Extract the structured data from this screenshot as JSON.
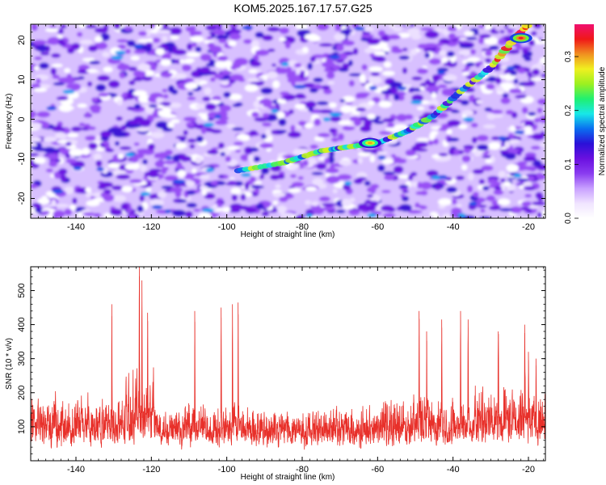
{
  "title": "KOM5.2025.167.17.57.G25",
  "colors": {
    "snr_line": "#e8302a",
    "axis": "#000000",
    "colormap": [
      "#ffffff",
      "#f0e4ff",
      "#c8a0ff",
      "#8a3cf0",
      "#6a10e0",
      "#2a10d8",
      "#0a6ff0",
      "#18e8e8",
      "#20f070",
      "#9cf020",
      "#f0f020",
      "#f09020",
      "#f01818",
      "#f01070"
    ]
  },
  "chart_data": [
    {
      "type": "heatmap",
      "xlabel": "Height of straight line (km)",
      "ylabel": "Frequency (Hz)",
      "xlim": [
        -152,
        -15.5
      ],
      "ylim": [
        -25,
        24
      ],
      "xticks": [
        -140,
        -120,
        -100,
        -80,
        -60,
        -40,
        -20
      ],
      "yticks": [
        -20,
        -10,
        0,
        10,
        20
      ],
      "colorbar": {
        "label": "Normalized spectral amplitude",
        "range": [
          0,
          0.36
        ],
        "ticks": [
          "0.0",
          "0.1",
          "0.2",
          "0.3"
        ]
      },
      "features": [
        {
          "name": "main streak",
          "points": [
            [
              -97,
              -13
            ],
            [
              -85,
              -11
            ],
            [
              -75,
              -8
            ],
            [
              -68,
              -7
            ],
            [
              -60,
              -6
            ],
            [
              -52,
              -3
            ],
            [
              -45,
              1
            ],
            [
              -38,
              7
            ],
            [
              -30,
              13
            ],
            [
              -24,
              20
            ],
            [
              -20,
              24
            ]
          ]
        },
        {
          "name": "peak",
          "x": -22,
          "y": 20.5,
          "value": 0.34
        },
        {
          "name": "secondary peak",
          "x": -62,
          "y": -6,
          "value": 0.3
        }
      ]
    },
    {
      "type": "line",
      "xlabel": "Height of straight line (km)",
      "ylabel": "SNR (10 * v/v)",
      "xlim": [
        -152,
        -15.5
      ],
      "ylim": [
        0,
        570
      ],
      "xticks": [
        -140,
        -120,
        -100,
        -80,
        -60,
        -40,
        -20
      ],
      "yticks": [
        100,
        200,
        300,
        400,
        500
      ],
      "series": [
        {
          "x_range": [
            -152,
            -15.5
          ],
          "baseline": 140,
          "typical_range": [
            40,
            320
          ],
          "peaks": [
            [
              -123.2,
              570
            ],
            [
              -122.5,
              530
            ],
            [
              -121,
              435
            ],
            [
              -130.5,
              460
            ],
            [
              -108.5,
              440
            ],
            [
              -101.5,
              450
            ],
            [
              -97,
              465
            ],
            [
              -98.5,
              460
            ],
            [
              -49,
              440
            ],
            [
              -47,
              380
            ],
            [
              -43,
              415
            ],
            [
              -38,
              440
            ],
            [
              -36,
              415
            ],
            [
              -28,
              380
            ],
            [
              -21,
              400
            ],
            [
              -20,
              320
            ],
            [
              -18,
              300
            ]
          ]
        }
      ]
    }
  ]
}
